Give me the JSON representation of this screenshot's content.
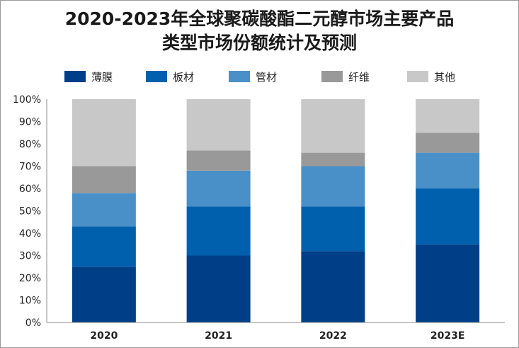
{
  "chart_data": {
    "type": "bar",
    "stacked": true,
    "title_lines": [
      "2020-2023年全球聚碳酸酯二元醇市场主要产品",
      "类型市场份额统计及预测"
    ],
    "xlabel": "",
    "ylabel": "",
    "categories": [
      "2020",
      "2021",
      "2022",
      "2023E"
    ],
    "ylim": [
      0,
      100
    ],
    "y_ticks": [
      "0%",
      "10%",
      "20%",
      "30%",
      "40%",
      "50%",
      "60%",
      "70%",
      "80%",
      "90%",
      "100%"
    ],
    "grid": false,
    "legend_position": "top",
    "series": [
      {
        "name": "薄膜",
        "color": "#003f87",
        "values": [
          25,
          30,
          32,
          35
        ]
      },
      {
        "name": "板材",
        "color": "#0060ad",
        "values": [
          18,
          22,
          20,
          25
        ]
      },
      {
        "name": "管材",
        "color": "#4a90c8",
        "values": [
          15,
          16,
          18,
          16
        ]
      },
      {
        "name": "纤维",
        "color": "#999999",
        "values": [
          12,
          9,
          6,
          9
        ]
      },
      {
        "name": "其他",
        "color": "#c8c8c8",
        "values": [
          30,
          23,
          24,
          15
        ]
      }
    ]
  }
}
